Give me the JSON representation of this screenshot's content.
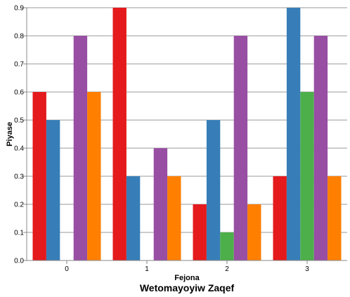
{
  "chart_data": {
    "type": "bar",
    "title": "Wetomayoyiw Zaqef",
    "xlabel": "Fejona",
    "ylabel": "Piyase",
    "categories": [
      "0",
      "1",
      "2",
      "3"
    ],
    "ylim": [
      0,
      0.9
    ],
    "yticks": [
      "0.0",
      "0.1",
      "0.2",
      "0.3",
      "0.4",
      "0.5",
      "0.6",
      "0.7",
      "0.8",
      "0.9"
    ],
    "grid": true,
    "legend": "none",
    "series": [
      {
        "color": "#e41a1c",
        "values": [
          0.6,
          0.9,
          0.2,
          0.3
        ]
      },
      {
        "color": "#377eb8",
        "values": [
          0.5,
          0.3,
          0.5,
          0.9
        ]
      },
      {
        "color": "#4daf4a",
        "values": [
          0.0,
          0.0,
          0.1,
          0.6
        ]
      },
      {
        "color": "#984ea3",
        "values": [
          0.8,
          0.4,
          0.8,
          0.8
        ]
      },
      {
        "color": "#ff7f00",
        "values": [
          0.6,
          0.3,
          0.2,
          0.3
        ]
      }
    ]
  }
}
